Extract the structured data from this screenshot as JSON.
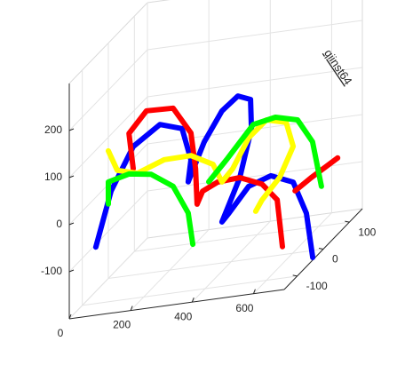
{
  "chart_data": {
    "type": "line3d",
    "annotation": "qiinst64",
    "xlim": [
      0,
      700
    ],
    "ylim": [
      -150,
      150
    ],
    "zlim": [
      -200,
      300
    ],
    "xticks": [
      0,
      200,
      400,
      600
    ],
    "yticks": [
      -100,
      0,
      100
    ],
    "zticks": [
      -100,
      0,
      100,
      200
    ],
    "grid": true,
    "series": [
      {
        "color": "#0000ff",
        "x": [
          44,
          9,
          81,
          168,
          240,
          269,
          260,
          312,
          370,
          422,
          463,
          466,
          428,
          370,
          393,
          457,
          529,
          602,
          645,
          691
        ],
        "y": [
          -100,
          0,
          0,
          0,
          0,
          0,
          0,
          0,
          0,
          0,
          0,
          0,
          0,
          0,
          0,
          0,
          0,
          0,
          0,
          -30
        ],
        "z": [
          -80,
          -15,
          73,
          112,
          97,
          28,
          -18,
          62,
          123,
          150,
          139,
          77,
          -24,
          -113,
          -96,
          -45,
          -29,
          -49,
          -119,
          -200
        ]
      },
      {
        "color": "#ff0000",
        "x": [
          81,
          67,
          124,
          211,
          269,
          284,
          289,
          307,
          356,
          428,
          500,
          550,
          567,
          null,
          608,
          660,
          662
        ],
        "y": [
          0,
          0,
          0,
          0,
          0,
          0,
          0,
          0,
          0,
          0,
          0,
          0,
          0,
          null,
          0,
          0,
          100
        ],
        "z": [
          26,
          102,
          145,
          143,
          85,
          8,
          -68,
          -42,
          -27,
          -24,
          -44,
          -82,
          -183,
          null,
          -68,
          -45,
          -60
        ]
      },
      {
        "color": "#ffff00",
        "x": [
          0,
          29,
          95,
          182,
          269,
          341,
          370,
          405,
          457,
          515,
          579,
          602,
          558,
          500,
          480
        ],
        "y": [
          0,
          0,
          0,
          0,
          0,
          0,
          0,
          0,
          0,
          0,
          0,
          0,
          0,
          0,
          0
        ],
        "z": [
          71,
          27,
          15,
          36,
          37,
          12,
          -28,
          -3,
          58,
          91,
          80,
          27,
          -35,
          -78,
          -100
        ]
      },
      {
        "color": "#00ff00",
        "x": [
          0,
          0,
          67,
          139,
          211,
          260,
          275,
          null,
          327,
          385,
          472,
          544,
          616,
          665,
          694
        ],
        "y": [
          0,
          0,
          0,
          0,
          0,
          0,
          0,
          null,
          0,
          0,
          0,
          0,
          0,
          0,
          0
        ],
        "z": [
          -42,
          5,
          16,
          9,
          -23,
          -84,
          -152,
          null,
          -24,
          18,
          85,
          94,
          82,
          31,
          -66
        ]
      }
    ]
  }
}
